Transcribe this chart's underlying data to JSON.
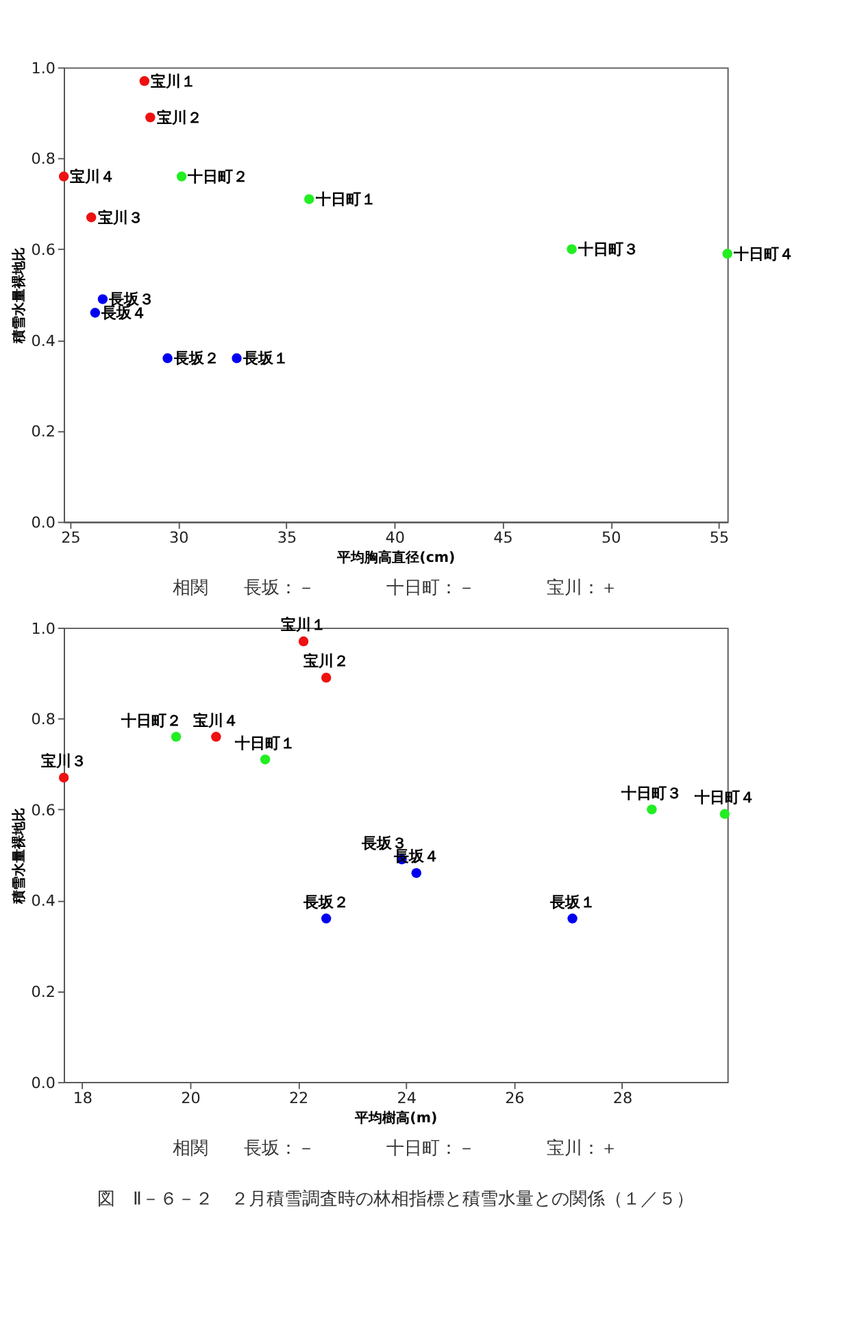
{
  "chart_data": [
    {
      "type": "scatter",
      "xlabel": "平均胸高直径(cm)",
      "ylabel": "積雪水量裸地比",
      "xlim": [
        24.7,
        55.4
      ],
      "xticks": [
        25,
        30,
        35,
        40,
        45,
        50,
        55
      ],
      "ylim": [
        0,
        1
      ],
      "yticks": [
        {
          "value": 0,
          "label": "0.0"
        },
        {
          "value": 0.2,
          "label": "0.2"
        },
        {
          "value": 0.4,
          "label": "0.4"
        },
        {
          "value": 0.6,
          "label": "0.6"
        },
        {
          "value": 0.8,
          "label": "0.8"
        },
        {
          "value": 1,
          "label": "1.0"
        }
      ],
      "grid": false,
      "legend": false,
      "marker": "circle",
      "series": [
        {
          "color": "#0000ee",
          "x": [
            32.7,
            29.5,
            26.5,
            26.15
          ],
          "values": [
            0.36,
            0.36,
            0.49,
            0.46
          ]
        },
        {
          "color": "#22ee22",
          "x": [
            36.05,
            30.15,
            48.2,
            55.4
          ],
          "values": [
            0.71,
            0.76,
            0.6,
            0.59
          ]
        },
        {
          "color": "#ee1111",
          "x": [
            28.43,
            28.7,
            25.97,
            24.7
          ],
          "values": [
            0.97,
            0.89,
            0.67,
            0.76
          ]
        }
      ],
      "annotations": [
        {
          "text": "長坂１",
          "x": 32.7,
          "y": 0.36
        },
        {
          "text": "長坂２",
          "x": 29.5,
          "y": 0.36
        },
        {
          "text": "長坂３",
          "x": 26.5,
          "y": 0.49
        },
        {
          "text": "長坂４",
          "x": 26.15,
          "y": 0.46
        },
        {
          "text": "十日町１",
          "x": 36.05,
          "y": 0.71
        },
        {
          "text": "十日町２",
          "x": 30.15,
          "y": 0.76
        },
        {
          "text": "十日町３",
          "x": 48.2,
          "y": 0.6
        },
        {
          "text": "十日町４",
          "x": 55.4,
          "y": 0.59
        },
        {
          "text": "宝川１",
          "x": 28.43,
          "y": 0.97
        },
        {
          "text": "宝川２",
          "x": 28.7,
          "y": 0.89
        },
        {
          "text": "宝川３",
          "x": 25.97,
          "y": 0.67
        },
        {
          "text": "宝川４",
          "x": 24.7,
          "y": 0.76
        },
        "相関　　長坂：－　　　　十日町：－　　　　宝川：＋"
      ]
    },
    {
      "type": "scatter",
      "xlabel": "平均樹高(m)",
      "ylabel": "積雪水量裸地比",
      "xlim": [
        17.66,
        29.95
      ],
      "xticks": [
        18,
        20,
        22,
        24,
        26,
        28
      ],
      "ylim": [
        0,
        1
      ],
      "yticks": [
        {
          "value": 0,
          "label": "0.0"
        },
        {
          "value": 0.2,
          "label": "0.2"
        },
        {
          "value": 0.4,
          "label": "0.4"
        },
        {
          "value": 0.6,
          "label": "0.6"
        },
        {
          "value": 0.8,
          "label": "0.8"
        },
        {
          "value": 1,
          "label": "1.0"
        }
      ],
      "grid": false,
      "legend": false,
      "marker": "circle",
      "series": [
        {
          "color": "#0000ee",
          "x": [
            27.08,
            22.52,
            23.92,
            24.19
          ],
          "values": [
            0.36,
            0.36,
            0.49,
            0.46
          ]
        },
        {
          "color": "#22ee22",
          "x": [
            21.39,
            19.74,
            28.55,
            29.9
          ],
          "values": [
            0.71,
            0.76,
            0.6,
            0.59
          ]
        },
        {
          "color": "#ee1111",
          "x": [
            22.1,
            22.52,
            17.66,
            20.48
          ],
          "values": [
            0.97,
            0.89,
            0.67,
            0.76
          ]
        }
      ],
      "annotations": [
        {
          "text": "長坂１",
          "x": 27.08,
          "y": 0.36
        },
        {
          "text": "長坂２",
          "x": 22.52,
          "y": 0.36
        },
        {
          "text": "長坂３",
          "x": 23.92,
          "y": 0.49
        },
        {
          "text": "長坂４",
          "x": 24.19,
          "y": 0.46
        },
        {
          "text": "十日町１",
          "x": 21.39,
          "y": 0.71
        },
        {
          "text": "十日町２",
          "x": 19.74,
          "y": 0.76
        },
        {
          "text": "十日町３",
          "x": 28.55,
          "y": 0.6
        },
        {
          "text": "十日町４",
          "x": 29.9,
          "y": 0.59
        },
        {
          "text": "宝川１",
          "x": 22.1,
          "y": 0.97
        },
        {
          "text": "宝川２",
          "x": 22.52,
          "y": 0.89
        },
        {
          "text": "宝川３",
          "x": 17.66,
          "y": 0.67
        },
        {
          "text": "宝川４",
          "x": 20.48,
          "y": 0.76
        },
        "相関　　長坂：－　　　　十日町：－　　　　宝川：＋",
        "図　Ⅱ－６－２　２月積雪調査時の林相指標と積雪水量との関係（１／５）"
      ]
    }
  ]
}
